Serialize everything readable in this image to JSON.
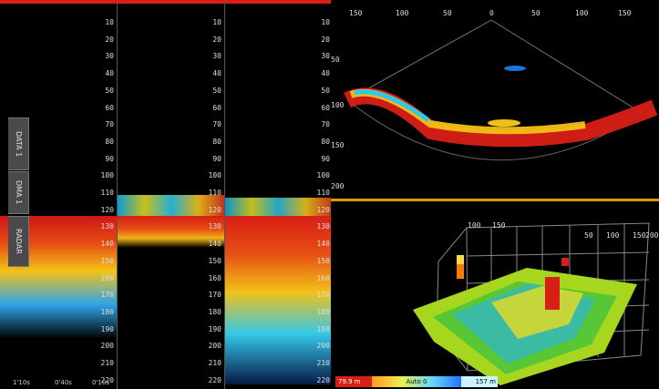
{
  "sonar": {
    "left_scale": [
      "10",
      "20",
      "30",
      "40",
      "50",
      "60",
      "70",
      "80",
      "90",
      "100",
      "110",
      "120",
      "130",
      "140",
      "150",
      "160",
      "170",
      "180",
      "190",
      "200",
      "210",
      "220"
    ],
    "tabs": [
      "DATA 1",
      "DMA 1",
      "RADAR"
    ],
    "bottom_time": [
      "1'10s",
      "0'40s",
      "0'10s"
    ]
  },
  "fan": {
    "top_labels": [
      "150",
      "100",
      "50",
      "0",
      "50",
      "100",
      "150"
    ],
    "side_labels": [
      "50",
      "100",
      "150",
      "200"
    ]
  },
  "three_d": {
    "axis_labels": [
      "100",
      "150",
      "50",
      "100",
      "150",
      "200"
    ]
  },
  "status": {
    "left_value": "79.9 m",
    "center_label": "Auto",
    "center_value": "0",
    "right_value": "157 m"
  },
  "colors": {
    "divider": "#d59b0d",
    "echo_red": "#d81f16",
    "echo_yellow": "#f4e21a",
    "echo_cyan": "#2ecbe6",
    "status_bar": "#ffffff"
  }
}
